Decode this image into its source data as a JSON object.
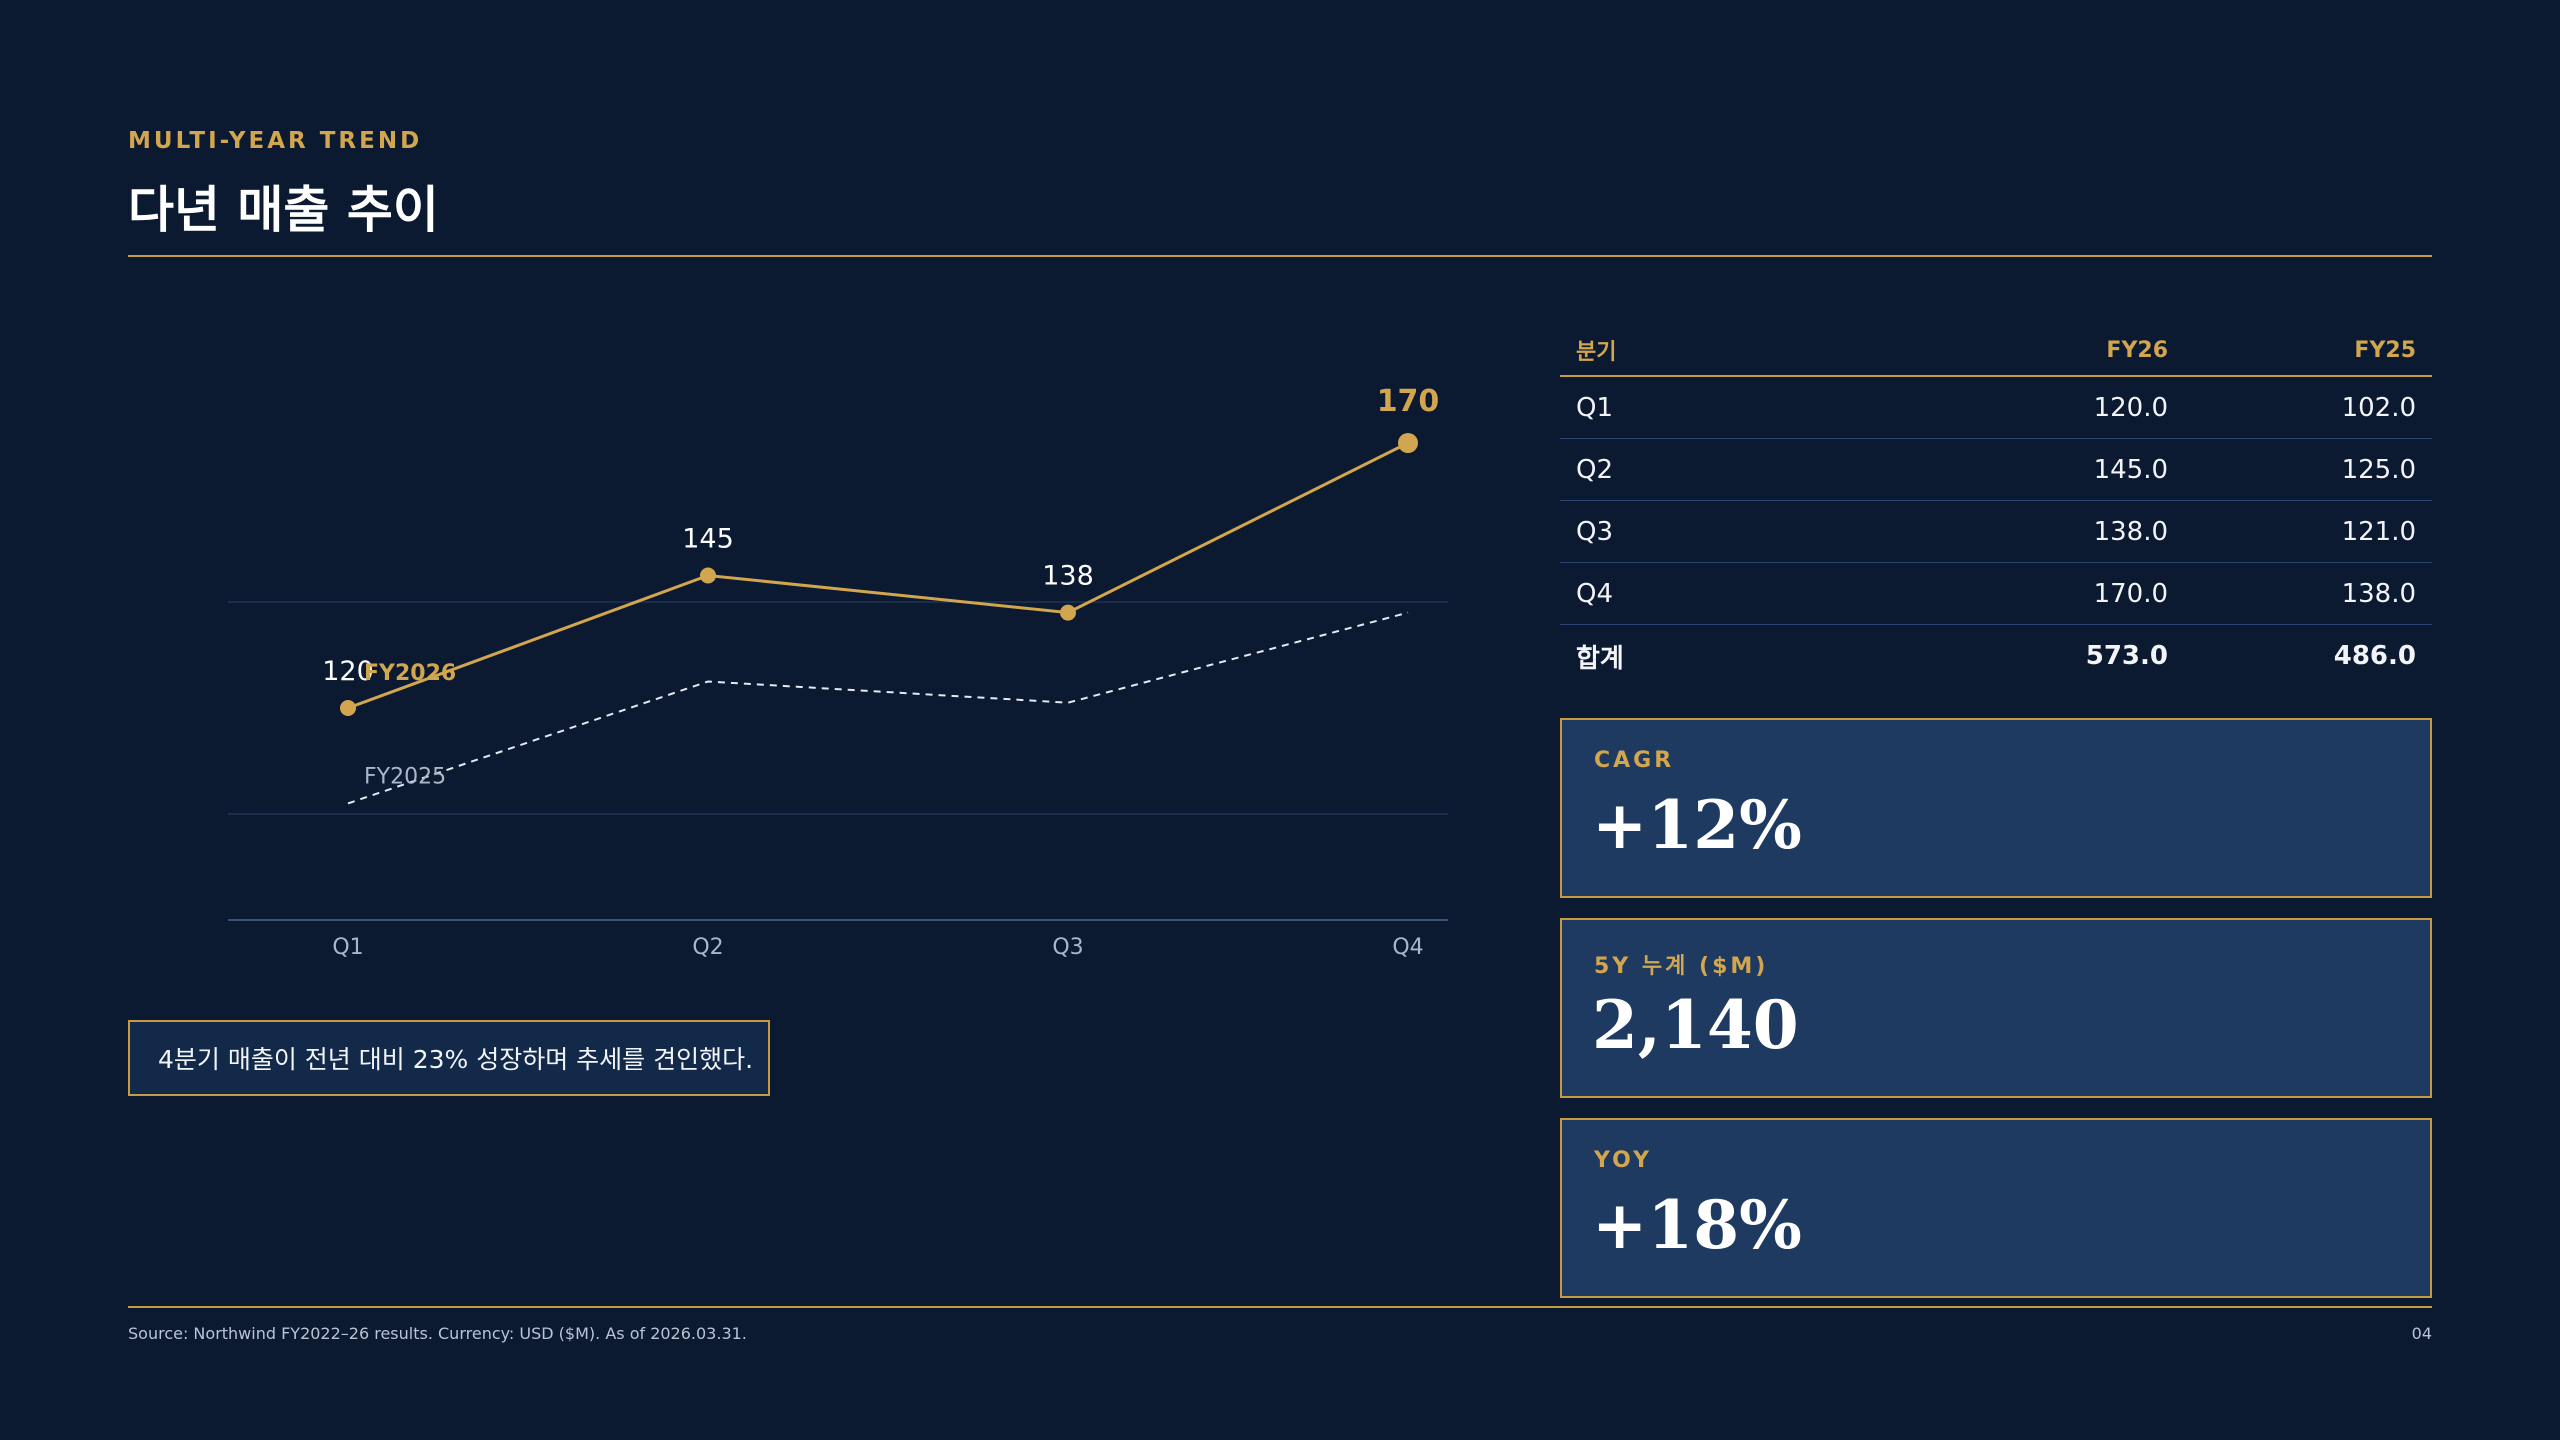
{
  "header": {
    "eyebrow": "MULTI-YEAR TREND",
    "title": "다년 매출 추이"
  },
  "callout": "4분기 매출이 전년 대비 23% 성장하며 추세를 견인했다.",
  "table": {
    "headers": [
      "분기",
      "FY26",
      "FY25"
    ],
    "rows": [
      [
        "Q1",
        "120.0",
        "102.0"
      ],
      [
        "Q2",
        "145.0",
        "125.0"
      ],
      [
        "Q3",
        "138.0",
        "121.0"
      ],
      [
        "Q4",
        "170.0",
        "138.0"
      ]
    ],
    "total": [
      "합계",
      "573.0",
      "486.0"
    ]
  },
  "kpis": [
    {
      "label": "CAGR",
      "value": "+12%"
    },
    {
      "label": "5Y 누계 ($M)",
      "value": "2,140"
    },
    {
      "label": "YOY",
      "value": "+18%"
    }
  ],
  "footer": {
    "source": "Source: Northwind FY2022–26 results. Currency: USD ($M). As of 2026.03.31.",
    "page": "04"
  },
  "colors": {
    "background": "#0b1931",
    "accent": "#d2a64e",
    "card": "#1e3a60",
    "fy2026_line": "#d2a64e",
    "fy2025_line": "#e6e9ef"
  },
  "chart_data": {
    "type": "line",
    "categories": [
      "Q1",
      "Q2",
      "Q3",
      "Q4"
    ],
    "series": [
      {
        "name": "FY2026",
        "values": [
          120,
          145,
          138,
          170
        ],
        "style": "solid",
        "markers": true,
        "data_labels": [
          "120",
          "145",
          "138",
          "170"
        ]
      },
      {
        "name": "FY2025",
        "values": [
          102,
          125,
          121,
          138
        ],
        "style": "dashed",
        "markers": false
      }
    ],
    "ylim": [
      80,
      180
    ],
    "grid": true,
    "legend": "inline-labels"
  }
}
